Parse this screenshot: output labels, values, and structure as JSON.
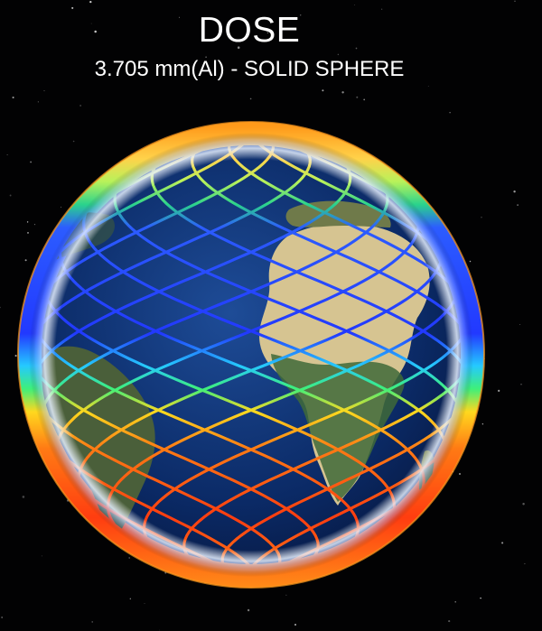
{
  "header": {
    "title": "DOSE",
    "subtitle": "3.705 mm(Al) - SOLID SPHERE"
  },
  "colors": {
    "background": "#020203",
    "ocean": "#0c2c6b",
    "land_desert": "#d9c79a",
    "land_green": "#4c6a3a",
    "low_dose": "#1b3cff",
    "mid_dose": "#22d37a",
    "high_dose": "#ff3b10",
    "peak_dose": "#ffa11c"
  },
  "visualization": {
    "type": "satellite-orbit-dose-map",
    "color_scale": [
      "blue",
      "cyan",
      "green",
      "yellow",
      "orange",
      "red"
    ]
  }
}
